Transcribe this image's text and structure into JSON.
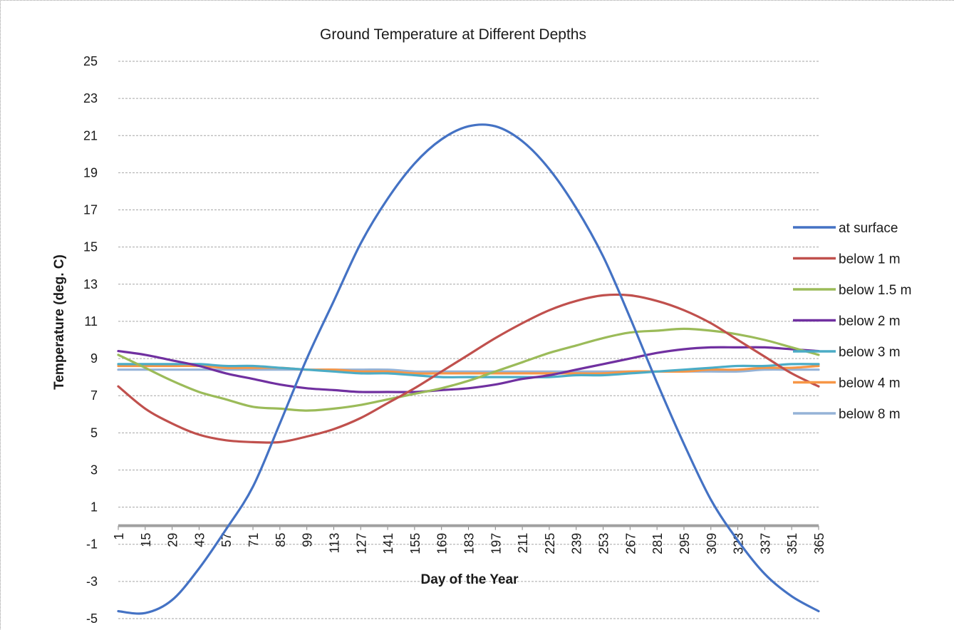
{
  "chart_data": {
    "type": "line",
    "title": "Ground Temperature at Different Depths",
    "xlabel": "Day of the Year",
    "ylabel": "Temperature (deg. C)",
    "xlim": [
      1,
      365
    ],
    "ylim": [
      -5,
      25
    ],
    "y_ticks": [
      25,
      23,
      21,
      19,
      17,
      15,
      13,
      11,
      9,
      7,
      5,
      3,
      1,
      -1,
      -3,
      -5
    ],
    "x_ticks": [
      "1",
      "15",
      "29",
      "43",
      "57",
      "71",
      "85",
      "99",
      "113",
      "127",
      "141",
      "155",
      "169",
      "183",
      "197",
      "211",
      "225",
      "239",
      "253",
      "267",
      "281",
      "295",
      "309",
      "323",
      "337",
      "351",
      "365"
    ],
    "grid": true,
    "legend": "right",
    "x": [
      1,
      15,
      29,
      43,
      57,
      71,
      85,
      99,
      113,
      127,
      141,
      155,
      169,
      183,
      197,
      211,
      225,
      239,
      253,
      267,
      281,
      295,
      309,
      323,
      337,
      351,
      365
    ],
    "series": [
      {
        "name": "at surface",
        "color": "#4472c4",
        "values": [
          -4.6,
          -4.7,
          -4.0,
          -2.3,
          -0.2,
          2.1,
          5.5,
          9.0,
          12.1,
          15.2,
          17.6,
          19.5,
          20.8,
          21.5,
          21.5,
          20.7,
          19.2,
          17.1,
          14.5,
          11.2,
          7.7,
          4.4,
          1.4,
          -0.8,
          -2.6,
          -3.8,
          -4.6
        ]
      },
      {
        "name": "below 1 m",
        "color": "#c0504d",
        "values": [
          7.5,
          6.3,
          5.5,
          4.9,
          4.6,
          4.5,
          4.5,
          4.8,
          5.2,
          5.8,
          6.6,
          7.4,
          8.3,
          9.2,
          10.1,
          10.9,
          11.6,
          12.1,
          12.4,
          12.4,
          12.1,
          11.6,
          10.9,
          10.0,
          9.1,
          8.2,
          7.5
        ]
      },
      {
        "name": "below 1.5 m",
        "color": "#9bbb59",
        "values": [
          9.2,
          8.5,
          7.8,
          7.2,
          6.8,
          6.4,
          6.3,
          6.2,
          6.3,
          6.5,
          6.8,
          7.1,
          7.4,
          7.8,
          8.3,
          8.8,
          9.3,
          9.7,
          10.1,
          10.4,
          10.5,
          10.6,
          10.5,
          10.3,
          10.0,
          9.6,
          9.2
        ]
      },
      {
        "name": "below 2 m",
        "color": "#7030a0",
        "values": [
          9.4,
          9.2,
          8.9,
          8.6,
          8.2,
          7.9,
          7.6,
          7.4,
          7.3,
          7.2,
          7.2,
          7.2,
          7.3,
          7.4,
          7.6,
          7.9,
          8.1,
          8.4,
          8.7,
          9.0,
          9.3,
          9.5,
          9.6,
          9.6,
          9.6,
          9.5,
          9.4
        ]
      },
      {
        "name": "below 3 m",
        "color": "#4bacc6",
        "values": [
          8.7,
          8.7,
          8.7,
          8.7,
          8.6,
          8.6,
          8.5,
          8.4,
          8.3,
          8.2,
          8.2,
          8.1,
          8.0,
          8.0,
          8.0,
          8.0,
          8.0,
          8.1,
          8.1,
          8.2,
          8.3,
          8.4,
          8.5,
          8.6,
          8.6,
          8.7,
          8.7
        ]
      },
      {
        "name": "below 4 m",
        "color": "#f79646",
        "values": [
          8.6,
          8.6,
          8.6,
          8.6,
          8.5,
          8.5,
          8.5,
          8.4,
          8.4,
          8.3,
          8.3,
          8.2,
          8.2,
          8.2,
          8.2,
          8.2,
          8.2,
          8.2,
          8.2,
          8.3,
          8.3,
          8.3,
          8.4,
          8.4,
          8.5,
          8.5,
          8.6
        ]
      },
      {
        "name": "below 8 m",
        "color": "#95b3d7",
        "values": [
          8.4,
          8.4,
          8.4,
          8.4,
          8.4,
          8.4,
          8.4,
          8.4,
          8.4,
          8.4,
          8.4,
          8.3,
          8.3,
          8.3,
          8.3,
          8.3,
          8.3,
          8.3,
          8.3,
          8.3,
          8.3,
          8.3,
          8.3,
          8.3,
          8.4,
          8.4,
          8.4
        ]
      }
    ]
  }
}
